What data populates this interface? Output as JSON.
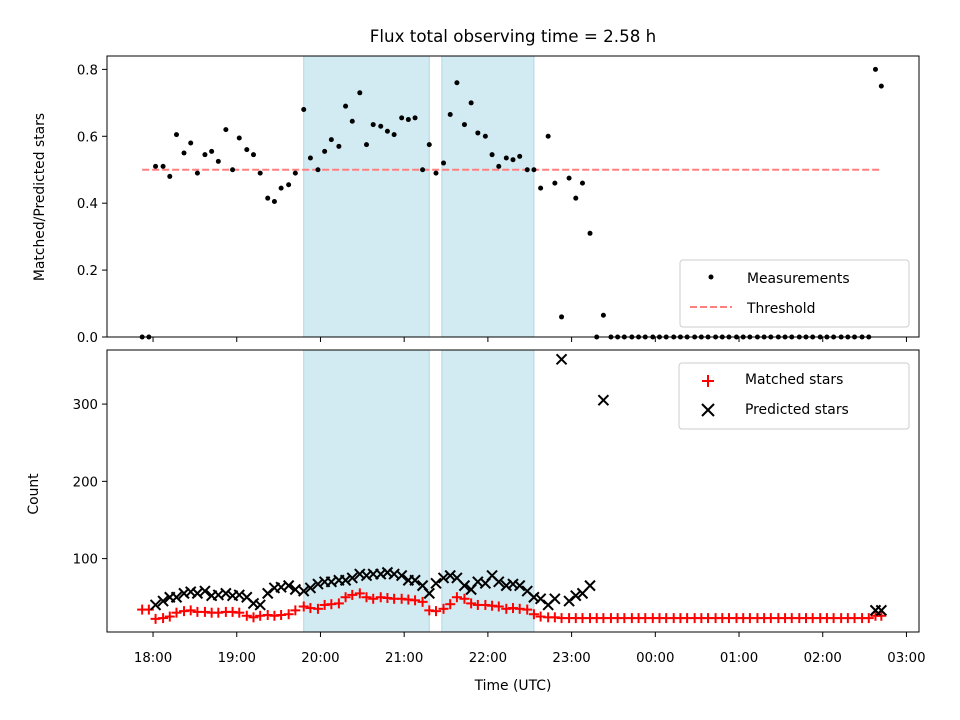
{
  "chart_data": [
    {
      "type": "scatter",
      "title": "Flux total observing time = 2.58 h",
      "ylabel": "Matched/Predicted stars",
      "ylim": [
        0,
        0.84
      ],
      "yticks": [
        "0.0",
        "0.2",
        "0.4",
        "0.6",
        "0.8"
      ],
      "ytick_values": [
        0,
        0.2,
        0.4,
        0.6,
        0.8
      ],
      "grid": false,
      "legend_position": "lower-right",
      "shaded_intervals_h": [
        [
          19.8,
          21.3
        ],
        [
          21.45,
          22.55
        ]
      ],
      "shaded_color": "#add8e6",
      "threshold": {
        "name": "Threshold",
        "value": 0.5,
        "x_range": [
          17.87,
          26.7
        ],
        "color": "#ff7f7f"
      },
      "series": [
        {
          "name": "Measurements",
          "color": "#000000",
          "x": [
            17.87,
            17.95,
            18.03,
            18.12,
            18.2,
            18.28,
            18.37,
            18.45,
            18.53,
            18.62,
            18.7,
            18.78,
            18.87,
            18.95,
            19.03,
            19.12,
            19.2,
            19.28,
            19.37,
            19.45,
            19.53,
            19.62,
            19.7,
            19.8,
            19.88,
            19.97,
            20.05,
            20.13,
            20.22,
            20.3,
            20.38,
            20.47,
            20.55,
            20.63,
            20.72,
            20.8,
            20.88,
            20.97,
            21.05,
            21.13,
            21.22,
            21.3,
            21.38,
            21.47,
            21.55,
            21.63,
            21.72,
            21.8,
            21.88,
            21.97,
            22.05,
            22.13,
            22.22,
            22.3,
            22.38,
            22.47,
            22.55,
            22.63,
            22.72,
            22.8,
            22.88,
            22.97,
            23.05,
            23.13,
            23.22,
            23.3,
            23.38,
            23.47,
            23.55,
            23.63,
            23.72,
            23.8,
            23.88,
            23.97,
            24.05,
            24.13,
            24.22,
            24.3,
            24.38,
            24.47,
            24.55,
            24.63,
            24.72,
            24.8,
            24.88,
            24.97,
            25.05,
            25.13,
            25.22,
            25.3,
            25.38,
            25.47,
            25.55,
            25.63,
            25.72,
            25.8,
            25.88,
            25.97,
            26.05,
            26.13,
            26.22,
            26.3,
            26.38,
            26.47,
            26.55,
            26.63,
            26.7
          ],
          "y": [
            0.0,
            0.0,
            0.51,
            0.51,
            0.48,
            0.605,
            0.55,
            0.58,
            0.49,
            0.545,
            0.555,
            0.525,
            0.62,
            0.5,
            0.595,
            0.56,
            0.545,
            0.49,
            0.415,
            0.405,
            0.445,
            0.455,
            0.49,
            0.68,
            0.535,
            0.5,
            0.555,
            0.59,
            0.57,
            0.69,
            0.645,
            0.73,
            0.575,
            0.635,
            0.63,
            0.615,
            0.605,
            0.655,
            0.65,
            0.655,
            0.5,
            0.575,
            0.49,
            0.52,
            0.665,
            0.76,
            0.635,
            0.7,
            0.61,
            0.6,
            0.545,
            0.51,
            0.535,
            0.53,
            0.54,
            0.5,
            0.5,
            0.445,
            0.6,
            0.46,
            0.06,
            0.475,
            0.415,
            0.46,
            0.31,
            0.0,
            0.065,
            0.0,
            0.0,
            0.0,
            0.0,
            0.0,
            0.0,
            0.0,
            0.0,
            0.0,
            0.0,
            0.0,
            0.0,
            0.0,
            0.0,
            0.0,
            0.0,
            0.0,
            0.0,
            0.0,
            0.0,
            0.0,
            0.0,
            0.0,
            0.0,
            0.0,
            0.0,
            0.0,
            0.0,
            0.0,
            0.0,
            0.0,
            0.0,
            0.0,
            0.0,
            0.0,
            0.0,
            0.0,
            0.0,
            0.8,
            0.75
          ]
        }
      ]
    },
    {
      "type": "scatter",
      "title": "",
      "xlabel": "Time (UTC)",
      "ylabel": "Count",
      "ylim": [
        5,
        370
      ],
      "yticks": [
        "100",
        "200",
        "300"
      ],
      "ytick_values": [
        100,
        200,
        300
      ],
      "xlim_h": [
        17.45,
        27.15
      ],
      "xticks": [
        "18:00",
        "19:00",
        "20:00",
        "21:00",
        "22:00",
        "23:00",
        "00:00",
        "01:00",
        "02:00",
        "03:00"
      ],
      "xtick_values_h": [
        18,
        19,
        20,
        21,
        22,
        23,
        24,
        25,
        26,
        27
      ],
      "grid": false,
      "legend_position": "top-right",
      "shaded_intervals_h": [
        [
          19.8,
          21.3
        ],
        [
          21.45,
          22.55
        ]
      ],
      "shaded_color": "#add8e6",
      "series": [
        {
          "name": "Matched stars",
          "color": "#ff0000",
          "marker": "+",
          "x": [
            17.87,
            17.95,
            18.03,
            18.12,
            18.2,
            18.28,
            18.37,
            18.45,
            18.53,
            18.62,
            18.7,
            18.78,
            18.87,
            18.95,
            19.03,
            19.12,
            19.2,
            19.28,
            19.37,
            19.45,
            19.53,
            19.62,
            19.7,
            19.8,
            19.88,
            19.97,
            20.05,
            20.13,
            20.22,
            20.3,
            20.38,
            20.47,
            20.55,
            20.63,
            20.72,
            20.8,
            20.88,
            20.97,
            21.05,
            21.13,
            21.22,
            21.3,
            21.38,
            21.47,
            21.55,
            21.63,
            21.72,
            21.8,
            21.88,
            21.97,
            22.05,
            22.13,
            22.22,
            22.3,
            22.38,
            22.47,
            22.55,
            22.63,
            22.72,
            22.8,
            22.88,
            22.97,
            23.05,
            23.13,
            23.22,
            23.3,
            23.38,
            23.47,
            23.55,
            23.63,
            23.72,
            23.8,
            23.88,
            23.97,
            24.05,
            24.13,
            24.22,
            24.3,
            24.38,
            24.47,
            24.55,
            24.63,
            24.72,
            24.8,
            24.88,
            24.97,
            25.05,
            25.13,
            25.22,
            25.3,
            25.38,
            25.47,
            25.55,
            25.63,
            25.72,
            25.8,
            25.88,
            25.97,
            26.05,
            26.13,
            26.22,
            26.3,
            26.38,
            26.47,
            26.55,
            26.63,
            26.7
          ],
          "y": [
            34,
            34,
            22,
            23,
            25,
            30,
            32,
            33,
            31,
            31,
            30,
            30,
            31,
            31,
            30,
            26,
            24,
            26,
            27,
            26,
            27,
            28,
            33,
            38,
            36,
            35,
            40,
            41,
            42,
            50,
            53,
            55,
            50,
            48,
            50,
            49,
            48,
            48,
            47,
            46,
            44,
            33,
            32,
            35,
            41,
            50,
            48,
            42,
            40,
            40,
            39,
            38,
            35,
            36,
            35,
            34,
            28,
            25,
            24,
            24,
            23,
            23,
            23,
            23,
            23,
            23,
            23,
            23,
            23,
            23,
            23,
            23,
            23,
            23,
            23,
            23,
            23,
            23,
            23,
            23,
            23,
            23,
            23,
            23,
            23,
            23,
            23,
            23,
            23,
            23,
            23,
            23,
            23,
            23,
            23,
            23,
            23,
            23,
            23,
            23,
            23,
            23,
            23,
            23,
            23,
            26,
            26
          ]
        },
        {
          "name": "Predicted stars",
          "color": "#000000",
          "marker": "x",
          "x": [
            18.03,
            18.12,
            18.2,
            18.28,
            18.37,
            18.45,
            18.53,
            18.62,
            18.7,
            18.78,
            18.87,
            18.95,
            19.03,
            19.12,
            19.2,
            19.28,
            19.37,
            19.45,
            19.53,
            19.62,
            19.7,
            19.8,
            19.88,
            19.97,
            20.05,
            20.13,
            20.22,
            20.3,
            20.38,
            20.47,
            20.55,
            20.63,
            20.72,
            20.8,
            20.88,
            20.97,
            21.05,
            21.13,
            21.22,
            21.3,
            21.38,
            21.47,
            21.55,
            21.63,
            21.72,
            21.8,
            21.88,
            21.97,
            22.05,
            22.13,
            22.22,
            22.3,
            22.38,
            22.47,
            22.55,
            22.63,
            22.72,
            22.8,
            22.88,
            22.97,
            23.05,
            23.13,
            23.22,
            23.38,
            26.63,
            26.7
          ],
          "y": [
            40,
            45,
            50,
            50,
            55,
            57,
            55,
            58,
            52,
            53,
            55,
            52,
            53,
            50,
            42,
            40,
            55,
            62,
            63,
            65,
            60,
            58,
            62,
            67,
            70,
            70,
            72,
            72,
            75,
            80,
            78,
            80,
            80,
            82,
            80,
            78,
            72,
            72,
            65,
            55,
            68,
            75,
            78,
            75,
            65,
            60,
            70,
            68,
            78,
            70,
            65,
            67,
            65,
            58,
            50,
            48,
            40,
            48,
            358,
            45,
            52,
            55,
            65,
            305,
            33,
            33
          ]
        }
      ]
    }
  ]
}
